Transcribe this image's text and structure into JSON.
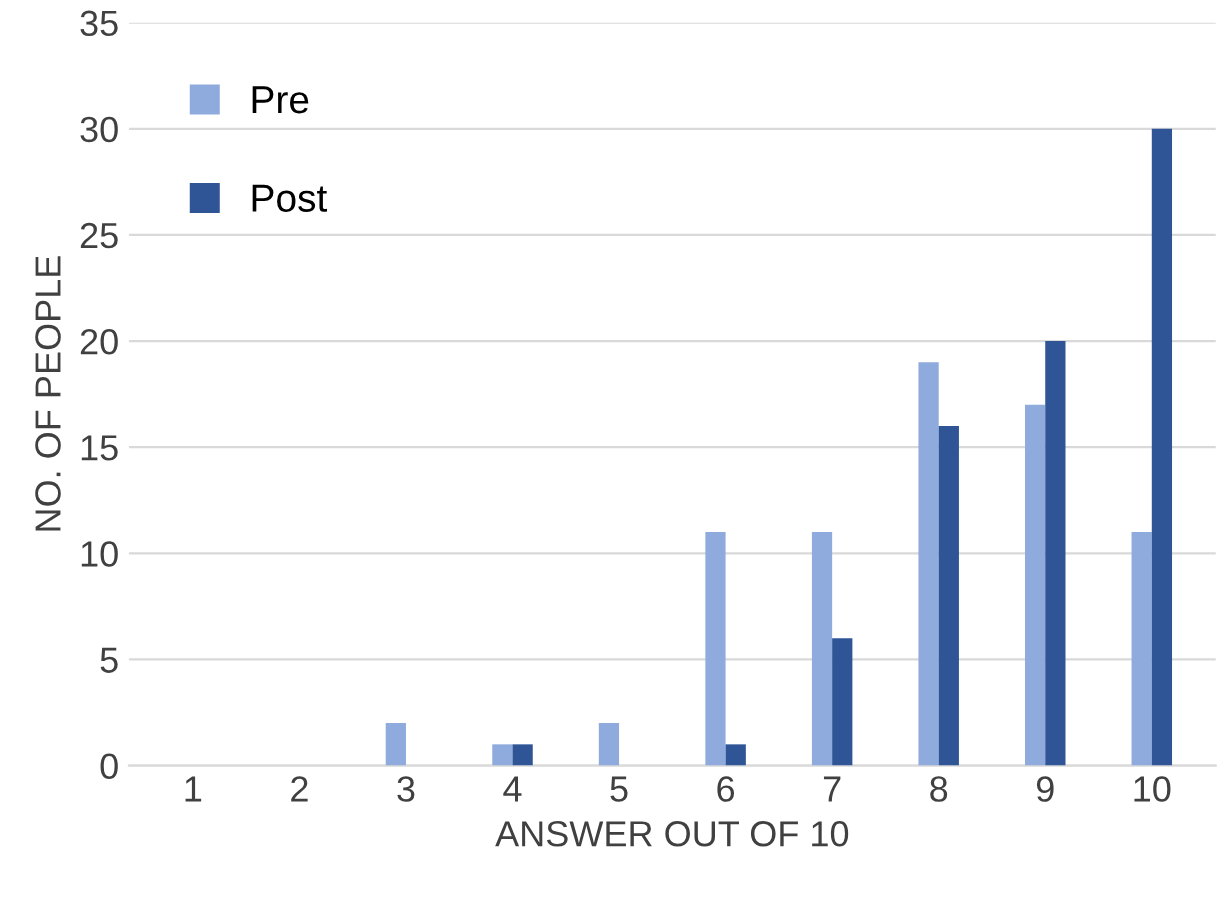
{
  "chart_data": {
    "type": "bar",
    "xlabel": "ANSWER OUT OF 10",
    "ylabel": "NO. OF PEOPLE",
    "categories": [
      "1",
      "2",
      "3",
      "4",
      "5",
      "6",
      "7",
      "8",
      "9",
      "10"
    ],
    "series": [
      {
        "name": "Pre",
        "color": "#8faadc",
        "values": [
          0,
          0,
          2,
          1,
          2,
          11,
          11,
          19,
          17,
          11
        ]
      },
      {
        "name": "Post",
        "color": "#2f5597",
        "values": [
          0,
          0,
          0,
          1,
          0,
          1,
          6,
          16,
          20,
          30
        ]
      }
    ],
    "ylim": [
      0,
      35
    ],
    "yticks": [
      0,
      5,
      10,
      15,
      20,
      25,
      30,
      35
    ],
    "grid": "y",
    "legend": "top left"
  }
}
